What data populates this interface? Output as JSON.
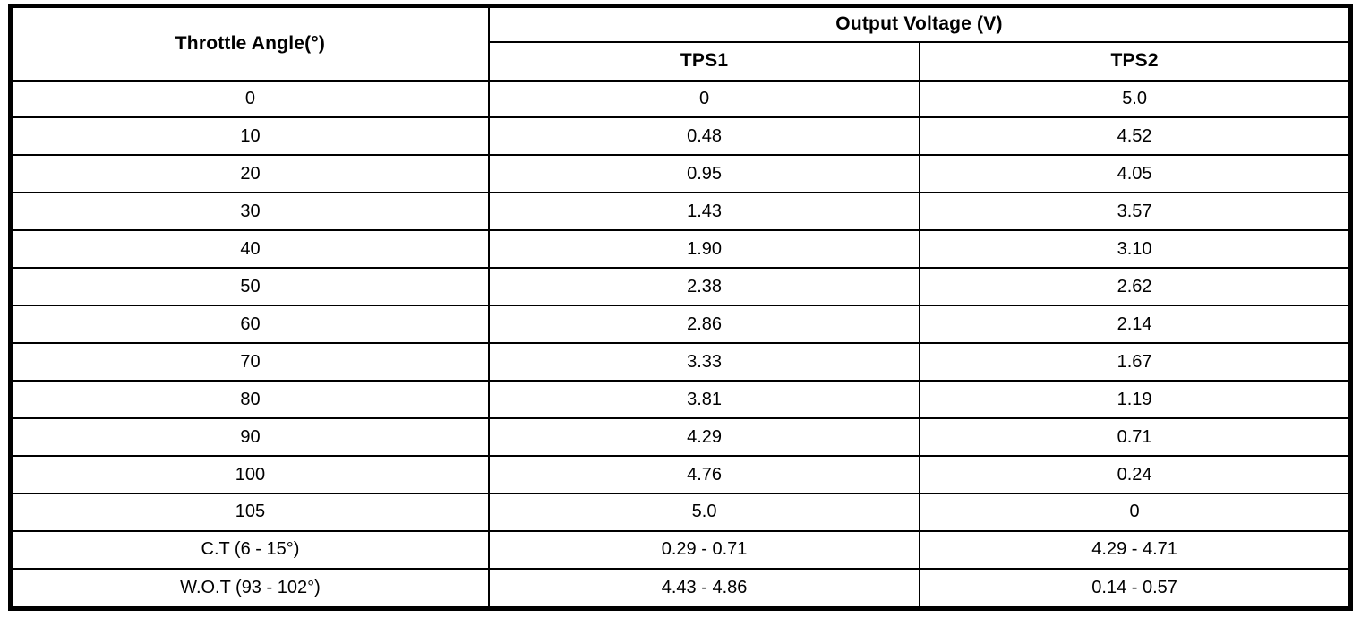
{
  "table": {
    "header": {
      "angle_label": "Throttle Angle(°)",
      "voltage_group_label": "Output Voltage (V)",
      "tps1_label": "TPS1",
      "tps2_label": "TPS2"
    },
    "rows": [
      {
        "angle": "0",
        "tps1": "0",
        "tps2": "5.0"
      },
      {
        "angle": "10",
        "tps1": "0.48",
        "tps2": "4.52"
      },
      {
        "angle": "20",
        "tps1": "0.95",
        "tps2": "4.05"
      },
      {
        "angle": "30",
        "tps1": "1.43",
        "tps2": "3.57"
      },
      {
        "angle": "40",
        "tps1": "1.90",
        "tps2": "3.10"
      },
      {
        "angle": "50",
        "tps1": "2.38",
        "tps2": "2.62"
      },
      {
        "angle": "60",
        "tps1": "2.86",
        "tps2": "2.14"
      },
      {
        "angle": "70",
        "tps1": "3.33",
        "tps2": "1.67"
      },
      {
        "angle": "80",
        "tps1": "3.81",
        "tps2": "1.19"
      },
      {
        "angle": "90",
        "tps1": "4.29",
        "tps2": "0.71"
      },
      {
        "angle": "100",
        "tps1": "4.76",
        "tps2": "0.24"
      },
      {
        "angle": "105",
        "tps1": "5.0",
        "tps2": "0"
      },
      {
        "angle": "C.T (6 - 15°)",
        "tps1": "0.29 - 0.71",
        "tps2": "4.29 - 4.71"
      },
      {
        "angle": "W.O.T (93 - 102°)",
        "tps1": "4.43 - 4.86",
        "tps2": "0.14 - 0.57"
      }
    ]
  },
  "colors": {
    "border": "#000000",
    "background": "#ffffff",
    "text": "#000000"
  }
}
